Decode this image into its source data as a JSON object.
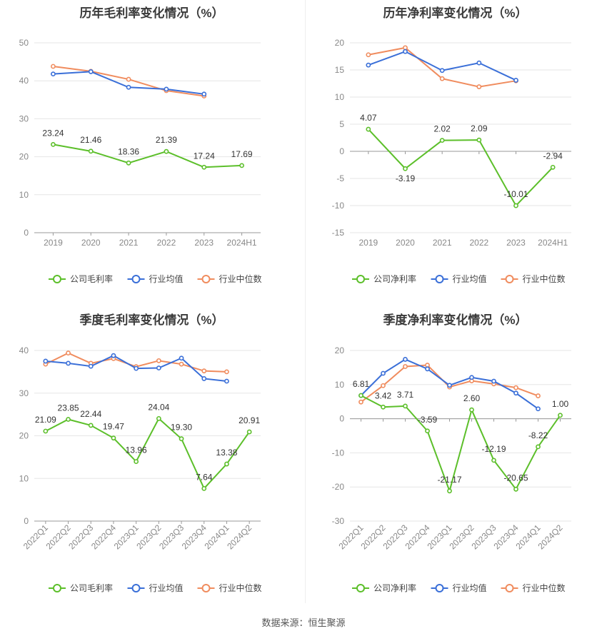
{
  "source": "数据来源：恒生聚源",
  "legend_common": [
    "行业均值",
    "行业中位数"
  ],
  "colors": {
    "company": "#5cbf2a",
    "mean": "#3a6fd8",
    "median": "#f08c5e",
    "grid": "#e6e6e6",
    "axis": "#888888"
  },
  "chart_data": [
    {
      "id": "annual-gross",
      "type": "line",
      "title": "历年毛利率变化情况（%）",
      "categories": [
        "2019",
        "2020",
        "2021",
        "2022",
        "2023",
        "2024H1"
      ],
      "ylim": [
        0,
        50
      ],
      "yticks": [
        0,
        10,
        20,
        30,
        40,
        50
      ],
      "series": [
        {
          "name": "公司毛利率",
          "color": "#5cbf2a",
          "values": [
            23.24,
            21.46,
            18.36,
            21.39,
            17.24,
            17.69
          ],
          "labels": [
            "23.24",
            "21.46",
            "18.36",
            "21.39",
            "17.24",
            "17.69"
          ]
        },
        {
          "name": "行业均值",
          "color": "#3a6fd8",
          "values": [
            41.8,
            42.4,
            38.3,
            37.8,
            36.5,
            null
          ]
        },
        {
          "name": "行业中位数",
          "color": "#f08c5e",
          "values": [
            43.8,
            42.5,
            40.4,
            37.4,
            36.0,
            null
          ]
        }
      ]
    },
    {
      "id": "annual-net",
      "type": "line",
      "title": "历年净利率变化情况（%）",
      "categories": [
        "2019",
        "2020",
        "2021",
        "2022",
        "2023",
        "2024H1"
      ],
      "ylim": [
        -15,
        20
      ],
      "yticks": [
        -15,
        -10,
        -5,
        0,
        5,
        10,
        15,
        20
      ],
      "series": [
        {
          "name": "公司净利率",
          "color": "#5cbf2a",
          "values": [
            4.07,
            -3.19,
            2.02,
            2.09,
            -10.01,
            -2.94
          ],
          "labels": [
            "4.07",
            "-3.19",
            "2.02",
            "2.09",
            "-10.01",
            "-2.94"
          ]
        },
        {
          "name": "行业均值",
          "color": "#3a6fd8",
          "values": [
            15.9,
            18.4,
            14.9,
            16.3,
            13.1,
            null
          ]
        },
        {
          "name": "行业中位数",
          "color": "#f08c5e",
          "values": [
            17.8,
            19.1,
            13.4,
            11.9,
            13.0,
            null
          ]
        }
      ]
    },
    {
      "id": "quarterly-gross",
      "type": "line",
      "title": "季度毛利率变化情况（%）",
      "categories": [
        "2022Q1",
        "2022Q2",
        "2022Q3",
        "2022Q4",
        "2023Q1",
        "2023Q2",
        "2023Q3",
        "2023Q4",
        "2024Q1",
        "2024Q2"
      ],
      "ylim": [
        0,
        40
      ],
      "yticks": [
        0,
        10,
        20,
        30,
        40
      ],
      "series": [
        {
          "name": "公司毛利率",
          "color": "#5cbf2a",
          "values": [
            21.09,
            23.85,
            22.44,
            19.47,
            13.96,
            24.04,
            19.3,
            7.64,
            13.38,
            20.91
          ],
          "labels": [
            "21.09",
            "23.85",
            "22.44",
            "19.47",
            "13.96",
            "24.04",
            "19.30",
            "7.64",
            "13.38",
            "20.91"
          ]
        },
        {
          "name": "行业均值",
          "color": "#3a6fd8",
          "values": [
            37.5,
            37.0,
            36.3,
            38.8,
            35.8,
            35.9,
            38.2,
            33.4,
            32.8,
            null
          ]
        },
        {
          "name": "行业中位数",
          "color": "#f08c5e",
          "values": [
            36.8,
            39.4,
            37.0,
            38.1,
            36.2,
            37.6,
            36.8,
            35.2,
            35.0,
            null
          ]
        }
      ]
    },
    {
      "id": "quarterly-net",
      "type": "line",
      "title": "季度净利率变化情况（%）",
      "categories": [
        "2022Q1",
        "2022Q2",
        "2022Q3",
        "2022Q4",
        "2023Q1",
        "2023Q2",
        "2023Q3",
        "2023Q4",
        "2024Q1",
        "2024Q2"
      ],
      "ylim": [
        -30,
        20
      ],
      "yticks": [
        -30,
        -20,
        -10,
        0,
        10,
        20
      ],
      "series": [
        {
          "name": "公司净利率",
          "color": "#5cbf2a",
          "values": [
            6.81,
            3.42,
            3.71,
            -3.59,
            -21.17,
            2.6,
            -12.19,
            -20.65,
            -8.22,
            1.0
          ],
          "labels": [
            "6.81",
            "3.42",
            "3.71",
            "-3.59",
            "-21.17",
            "2.60",
            "-12.19",
            "-20.65",
            "-8.22",
            "1.00"
          ]
        },
        {
          "name": "行业均值",
          "color": "#3a6fd8",
          "values": [
            6.8,
            13.3,
            17.4,
            14.6,
            9.8,
            12.1,
            11.0,
            7.5,
            2.9,
            null
          ]
        },
        {
          "name": "行业中位数",
          "color": "#f08c5e",
          "values": [
            4.9,
            9.7,
            15.3,
            15.7,
            9.3,
            11.1,
            10.2,
            9.1,
            6.7,
            null
          ]
        }
      ]
    }
  ]
}
